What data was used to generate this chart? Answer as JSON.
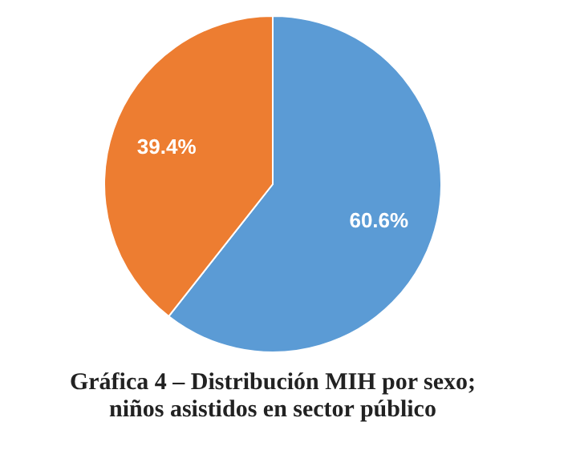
{
  "chart_data": {
    "type": "pie",
    "title": "Gráfica 4 –  Distribución MIH por sexo; niños asistidos en sector público",
    "categories": [
      null,
      null
    ],
    "values": [
      60.6,
      39.4
    ],
    "colors": [
      "#5b9bd5",
      "#ed7d31"
    ],
    "value_labels": [
      "60.6%",
      "39.4%"
    ],
    "legend": false
  }
}
